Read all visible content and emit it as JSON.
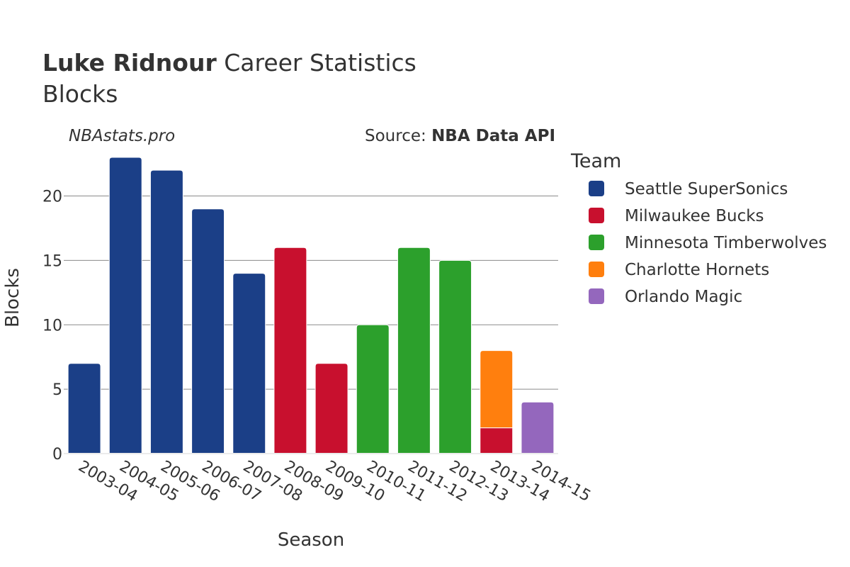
{
  "header": {
    "player": "Luke Ridnour",
    "title_rest": " Career Statistics",
    "subtitle": "Blocks",
    "watermark": "NBAstats.pro",
    "source_label": "Source: ",
    "source_name": "NBA Data API"
  },
  "legend": {
    "title": "Team"
  },
  "chart_data": {
    "type": "bar",
    "stacked": true,
    "title": "Luke Ridnour Career Statistics",
    "subtitle": "Blocks",
    "xlabel": "Season",
    "ylabel": "Blocks",
    "ylim": [
      0,
      23
    ],
    "yticks": [
      0,
      5,
      10,
      15,
      20
    ],
    "categories": [
      "2003-04",
      "2004-05",
      "2005-06",
      "2006-07",
      "2007-08",
      "2008-09",
      "2009-10",
      "2010-11",
      "2011-12",
      "2012-13",
      "2013-14",
      "2014-15"
    ],
    "series": [
      {
        "name": "Seattle SuperSonics",
        "color": "#1b3f87",
        "values": [
          7,
          23,
          22,
          19,
          14,
          0,
          0,
          0,
          0,
          0,
          0,
          0
        ]
      },
      {
        "name": "Milwaukee Bucks",
        "color": "#c8102e",
        "values": [
          0,
          0,
          0,
          0,
          0,
          16,
          7,
          0,
          0,
          0,
          2,
          0
        ]
      },
      {
        "name": "Minnesota Timberwolves",
        "color": "#2ca02c",
        "values": [
          0,
          0,
          0,
          0,
          0,
          0,
          0,
          10,
          16,
          15,
          0,
          0
        ]
      },
      {
        "name": "Charlotte Hornets",
        "color": "#ff7f0e",
        "values": [
          0,
          0,
          0,
          0,
          0,
          0,
          0,
          0,
          0,
          0,
          6,
          0
        ]
      },
      {
        "name": "Orlando Magic",
        "color": "#9467bd",
        "values": [
          0,
          0,
          0,
          0,
          0,
          0,
          0,
          0,
          0,
          0,
          0,
          4
        ]
      }
    ]
  }
}
